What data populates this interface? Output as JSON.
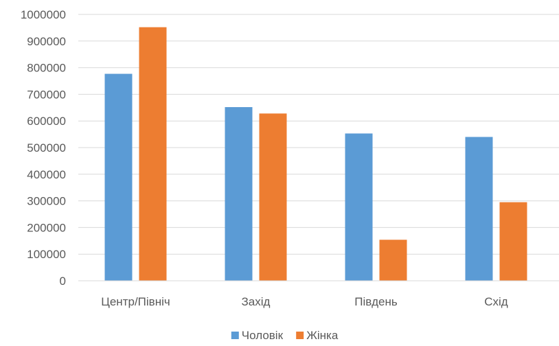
{
  "chart_data": {
    "type": "bar",
    "categories": [
      "Центр/Північ",
      "Захід",
      "Південь",
      "Схід"
    ],
    "series": [
      {
        "name": "Чоловік",
        "values": [
          777000,
          652000,
          553000,
          540000
        ],
        "color": "#5B9BD5"
      },
      {
        "name": "Жінка",
        "values": [
          952000,
          628000,
          154000,
          295000
        ],
        "color": "#ED7D31"
      }
    ],
    "y_ticks": [
      "0",
      "100000",
      "200000",
      "300000",
      "400000",
      "500000",
      "600000",
      "700000",
      "800000",
      "900000",
      "1000000"
    ],
    "ylim": [
      0,
      1000000
    ],
    "grid": true,
    "legend": "bottom",
    "title": "",
    "xlabel": "",
    "ylabel": ""
  }
}
